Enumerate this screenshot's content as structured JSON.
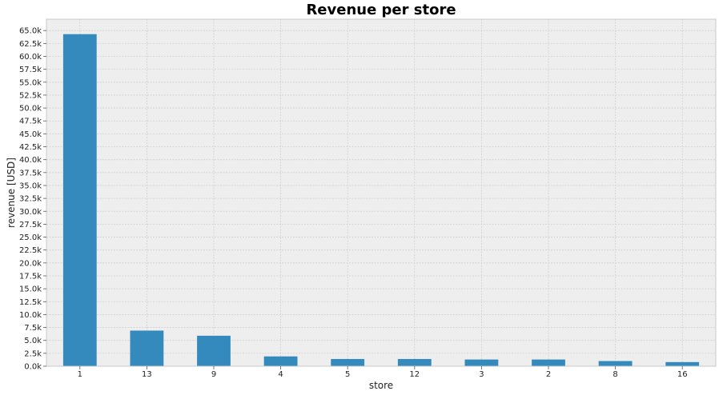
{
  "chart_data": {
    "type": "bar",
    "title": "Revenue per store",
    "xlabel": "store",
    "ylabel": "revenue [USD]",
    "categories": [
      "1",
      "13",
      "9",
      "4",
      "5",
      "12",
      "3",
      "2",
      "8",
      "16"
    ],
    "values": [
      64300,
      6900,
      5900,
      1900,
      1400,
      1400,
      1300,
      1300,
      1000,
      800
    ],
    "ylim": [
      0,
      67200
    ],
    "ytick_step": 2500,
    "ytick_labels": [
      "0.0k",
      "2.5k",
      "5.0k",
      "7.5k",
      "10.0k",
      "12.5k",
      "15.0k",
      "17.5k",
      "20.0k",
      "22.5k",
      "25.0k",
      "27.5k",
      "30.0k",
      "32.5k",
      "35.0k",
      "37.5k",
      "40.0k",
      "42.5k",
      "45.0k",
      "47.5k",
      "50.0k",
      "52.5k",
      "55.0k",
      "57.5k",
      "60.0k",
      "62.5k",
      "65.0k"
    ],
    "grid": true,
    "colors": {
      "bar": "#348abd",
      "plot_background": "#eeeeee",
      "grid": "#d0d0d0",
      "frame": "#c8c8c8"
    }
  }
}
